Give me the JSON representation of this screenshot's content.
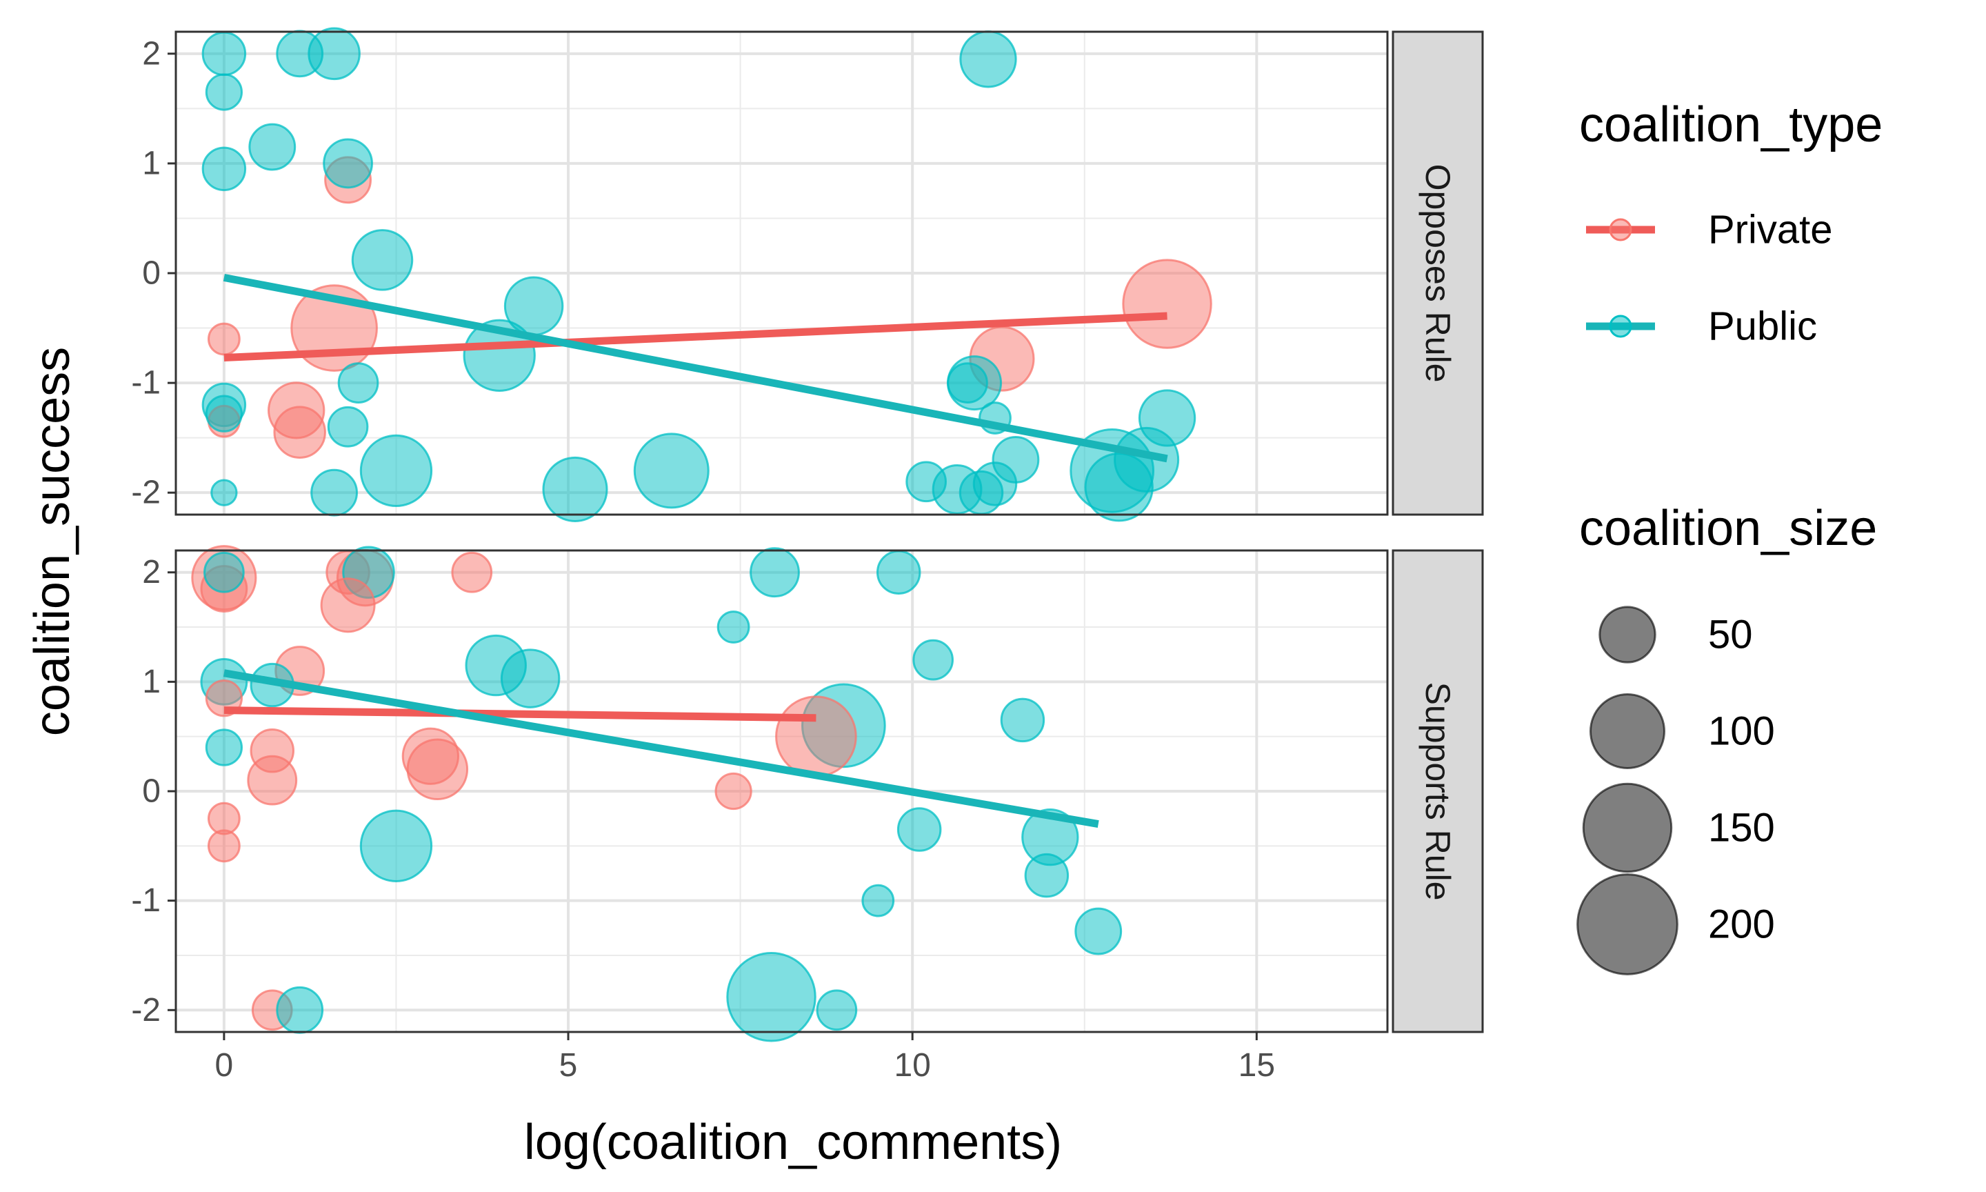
{
  "chart_data": {
    "type": "scatter",
    "xlabel": "log(coalition_comments)",
    "ylabel": "coalition_success",
    "xlim": [
      -0.7,
      16.9
    ],
    "ylim": [
      -2.2,
      2.2
    ],
    "x_ticks": [
      0,
      5,
      10,
      15
    ],
    "y_ticks": [
      2,
      1,
      0,
      -1,
      -2
    ],
    "grid": true,
    "legend_position": "right",
    "colors": {
      "Private": "#f8766d",
      "Public": "#00bfc4",
      "Private_line": "#ef5b58",
      "Public_line": "#19b5b8"
    },
    "legend": {
      "color_title": "coalition_type",
      "color_entries": [
        "Private",
        "Public"
      ],
      "size_title": "coalition_size",
      "size_entries": [
        50,
        100,
        150,
        200
      ]
    },
    "panels": [
      {
        "facet": "Opposes Rule",
        "points": [
          {
            "type": "Public",
            "x": 0.0,
            "y": 2.0,
            "size": 25
          },
          {
            "type": "Public",
            "x": 1.1,
            "y": 2.0,
            "size": 30
          },
          {
            "type": "Public",
            "x": 1.6,
            "y": 2.0,
            "size": 40
          },
          {
            "type": "Public",
            "x": 11.1,
            "y": 1.95,
            "size": 50
          },
          {
            "type": "Public",
            "x": 0.0,
            "y": 1.65,
            "size": 15
          },
          {
            "type": "Public",
            "x": 0.7,
            "y": 1.15,
            "size": 30
          },
          {
            "type": "Public",
            "x": 0.0,
            "y": 0.95,
            "size": 25
          },
          {
            "type": "Private",
            "x": 1.8,
            "y": 0.85,
            "size": 30
          },
          {
            "type": "Public",
            "x": 1.8,
            "y": 1.0,
            "size": 35
          },
          {
            "type": "Public",
            "x": 2.3,
            "y": 0.12,
            "size": 60
          },
          {
            "type": "Private",
            "x": 13.7,
            "y": -0.28,
            "size": 150
          },
          {
            "type": "Public",
            "x": 4.5,
            "y": -0.3,
            "size": 55
          },
          {
            "type": "Private",
            "x": 0.0,
            "y": -0.6,
            "size": 10
          },
          {
            "type": "Private",
            "x": 1.6,
            "y": -0.5,
            "size": 140
          },
          {
            "type": "Public",
            "x": 4.0,
            "y": -0.75,
            "size": 90
          },
          {
            "type": "Private",
            "x": 11.3,
            "y": -0.78,
            "size": 70
          },
          {
            "type": "Public",
            "x": 1.95,
            "y": -1.0,
            "size": 20
          },
          {
            "type": "Public",
            "x": 10.9,
            "y": -1.0,
            "size": 45
          },
          {
            "type": "Public",
            "x": 10.8,
            "y": -1.0,
            "size": 20
          },
          {
            "type": "Public",
            "x": 0.0,
            "y": -1.2,
            "size": 25
          },
          {
            "type": "Private",
            "x": 1.05,
            "y": -1.25,
            "size": 50
          },
          {
            "type": "Private",
            "x": 0.0,
            "y": -1.35,
            "size": 10
          },
          {
            "type": "Public",
            "x": 0.0,
            "y": -1.28,
            "size": 15
          },
          {
            "type": "Private",
            "x": 1.1,
            "y": -1.45,
            "size": 40
          },
          {
            "type": "Public",
            "x": 1.8,
            "y": -1.4,
            "size": 20
          },
          {
            "type": "Public",
            "x": 11.2,
            "y": -1.32,
            "size": 10
          },
          {
            "type": "Public",
            "x": 13.7,
            "y": -1.32,
            "size": 50
          },
          {
            "type": "Public",
            "x": 11.5,
            "y": -1.7,
            "size": 30
          },
          {
            "type": "Public",
            "x": 13.4,
            "y": -1.7,
            "size": 70
          },
          {
            "type": "Public",
            "x": 2.5,
            "y": -1.8,
            "size": 90
          },
          {
            "type": "Public",
            "x": 6.5,
            "y": -1.8,
            "size": 100
          },
          {
            "type": "Public",
            "x": 12.9,
            "y": -1.8,
            "size": 130
          },
          {
            "type": "Public",
            "x": 13.0,
            "y": -1.95,
            "size": 80
          },
          {
            "type": "Public",
            "x": 0.0,
            "y": -2.0,
            "size": 5
          },
          {
            "type": "Public",
            "x": 1.6,
            "y": -2.0,
            "size": 30
          },
          {
            "type": "Public",
            "x": 5.1,
            "y": -1.97,
            "size": 70
          },
          {
            "type": "Public",
            "x": 10.2,
            "y": -1.9,
            "size": 20
          },
          {
            "type": "Public",
            "x": 10.65,
            "y": -1.97,
            "size": 35
          },
          {
            "type": "Public",
            "x": 11.2,
            "y": -1.92,
            "size": 25
          },
          {
            "type": "Public",
            "x": 11.0,
            "y": -2.0,
            "size": 25
          }
        ],
        "trends": [
          {
            "type": "Private",
            "x": [
              0.0,
              13.7
            ],
            "y": [
              -0.77,
              -0.39
            ]
          },
          {
            "type": "Public",
            "x": [
              0.0,
              13.7
            ],
            "y": [
              -0.04,
              -1.69
            ]
          }
        ]
      },
      {
        "facet": "Supports Rule",
        "points": [
          {
            "type": "Private",
            "x": 0.0,
            "y": 1.95,
            "size": 70
          },
          {
            "type": "Private",
            "x": 0.0,
            "y": 1.85,
            "size": 30
          },
          {
            "type": "Public",
            "x": 0.0,
            "y": 2.0,
            "size": 20
          },
          {
            "type": "Private",
            "x": 1.8,
            "y": 2.0,
            "size": 25
          },
          {
            "type": "Private",
            "x": 2.05,
            "y": 1.95,
            "size": 50
          },
          {
            "type": "Public",
            "x": 2.1,
            "y": 2.0,
            "size": 40
          },
          {
            "type": "Private",
            "x": 3.6,
            "y": 2.0,
            "size": 20
          },
          {
            "type": "Public",
            "x": 8.0,
            "y": 2.0,
            "size": 35
          },
          {
            "type": "Public",
            "x": 9.8,
            "y": 2.0,
            "size": 25
          },
          {
            "type": "Private",
            "x": 1.8,
            "y": 1.7,
            "size": 45
          },
          {
            "type": "Public",
            "x": 7.4,
            "y": 1.5,
            "size": 10
          },
          {
            "type": "Public",
            "x": 3.95,
            "y": 1.15,
            "size": 60
          },
          {
            "type": "Public",
            "x": 4.45,
            "y": 1.03,
            "size": 55
          },
          {
            "type": "Private",
            "x": 1.1,
            "y": 1.1,
            "size": 35
          },
          {
            "type": "Public",
            "x": 10.3,
            "y": 1.2,
            "size": 20
          },
          {
            "type": "Public",
            "x": 0.0,
            "y": 1.0,
            "size": 30
          },
          {
            "type": "Private",
            "x": 0.0,
            "y": 0.85,
            "size": 15
          },
          {
            "type": "Public",
            "x": 0.7,
            "y": 0.97,
            "size": 25
          },
          {
            "type": "Public",
            "x": 11.6,
            "y": 0.65,
            "size": 25
          },
          {
            "type": "Public",
            "x": 9.0,
            "y": 0.6,
            "size": 130
          },
          {
            "type": "Private",
            "x": 8.6,
            "y": 0.5,
            "size": 120
          },
          {
            "type": "Public",
            "x": 0.0,
            "y": 0.4,
            "size": 15
          },
          {
            "type": "Private",
            "x": 0.7,
            "y": 0.37,
            "size": 25
          },
          {
            "type": "Private",
            "x": 3.0,
            "y": 0.32,
            "size": 50
          },
          {
            "type": "Private",
            "x": 3.1,
            "y": 0.2,
            "size": 60
          },
          {
            "type": "Private",
            "x": 0.7,
            "y": 0.1,
            "size": 35
          },
          {
            "type": "Private",
            "x": 7.4,
            "y": 0.0,
            "size": 15
          },
          {
            "type": "Private",
            "x": 0.0,
            "y": -0.25,
            "size": 10
          },
          {
            "type": "Public",
            "x": 10.1,
            "y": -0.35,
            "size": 25
          },
          {
            "type": "Public",
            "x": 12.0,
            "y": -0.42,
            "size": 50
          },
          {
            "type": "Private",
            "x": 0.0,
            "y": -0.5,
            "size": 10
          },
          {
            "type": "Public",
            "x": 2.5,
            "y": -0.5,
            "size": 90
          },
          {
            "type": "Public",
            "x": 11.95,
            "y": -0.77,
            "size": 25
          },
          {
            "type": "Public",
            "x": 9.5,
            "y": -1.0,
            "size": 10
          },
          {
            "type": "Public",
            "x": 12.7,
            "y": -1.28,
            "size": 30
          },
          {
            "type": "Public",
            "x": 7.95,
            "y": -1.88,
            "size": 150
          },
          {
            "type": "Private",
            "x": 0.7,
            "y": -2.0,
            "size": 20
          },
          {
            "type": "Public",
            "x": 1.1,
            "y": -2.0,
            "size": 30
          },
          {
            "type": "Public",
            "x": 8.9,
            "y": -2.0,
            "size": 20
          }
        ],
        "trends": [
          {
            "type": "Private",
            "x": [
              0.0,
              8.6
            ],
            "y": [
              0.74,
              0.67
            ]
          },
          {
            "type": "Public",
            "x": [
              0.0,
              12.7
            ],
            "y": [
              1.08,
              -0.3
            ]
          }
        ]
      }
    ]
  }
}
